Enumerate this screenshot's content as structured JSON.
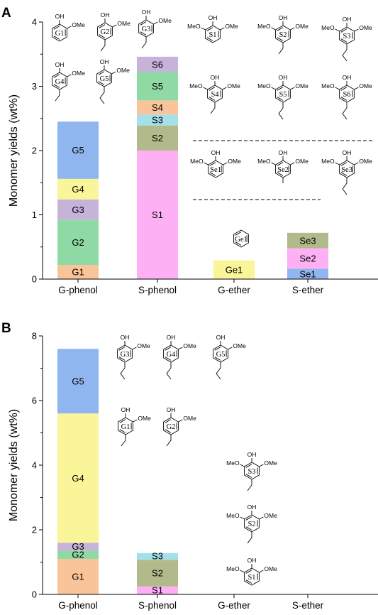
{
  "chart_data": [
    {
      "panel": "A",
      "type": "stacked_bar",
      "xlabel": "",
      "ylabel": "Monomer yields (wt%)",
      "ylim": [
        0,
        4
      ],
      "yticks": [
        "0",
        "1",
        "2",
        "3",
        "4"
      ],
      "categories": [
        "G-phenol",
        "S-phenol",
        "G-ether",
        "S-ether"
      ],
      "stacks": [
        {
          "category": "G-phenol",
          "segments": [
            {
              "label": "G1",
              "value": 0.22,
              "color": "#f9c49a"
            },
            {
              "label": "G2",
              "value": 0.7,
              "color": "#8ed9a4"
            },
            {
              "label": "G3",
              "value": 0.32,
              "color": "#c6b3d9"
            },
            {
              "label": "G4",
              "value": 0.32,
              "color": "#fbf59a"
            },
            {
              "label": "G5",
              "value": 0.89,
              "color": "#90b6ef"
            }
          ]
        },
        {
          "category": "S-phenol",
          "segments": [
            {
              "label": "S1",
              "value": 2.0,
              "color": "#fdb0f3"
            },
            {
              "label": "S2",
              "value": 0.39,
              "color": "#b2b98b"
            },
            {
              "label": "S3",
              "value": 0.17,
              "color": "#a3e0ea"
            },
            {
              "label": "S4",
              "value": 0.22,
              "color": "#f9c49a"
            },
            {
              "label": "S5",
              "value": 0.44,
              "color": "#8ed9a4"
            },
            {
              "label": "S6",
              "value": 0.24,
              "color": "#c6b3d9"
            }
          ]
        },
        {
          "category": "G-ether",
          "segments": [
            {
              "label": "Ge1",
              "value": 0.29,
              "color": "#fbf59a"
            }
          ]
        },
        {
          "category": "S-ether",
          "segments": [
            {
              "label": "Se1",
              "value": 0.16,
              "color": "#90b6ef"
            },
            {
              "label": "Se2",
              "value": 0.32,
              "color": "#fdb0f3"
            },
            {
              "label": "Se3",
              "value": 0.24,
              "color": "#b2b98b"
            }
          ]
        }
      ],
      "structure_labels": [
        "G1",
        "G2",
        "G3",
        "G4",
        "G5",
        "S1",
        "S2",
        "S3",
        "S4",
        "S5",
        "S6",
        "Se1",
        "Se2",
        "Se3",
        "Ge1"
      ],
      "substituent_labels": {
        "oh": "OH",
        "ome": "OMe",
        "meo": "MeO"
      }
    },
    {
      "panel": "B",
      "type": "stacked_bar",
      "xlabel": "",
      "ylabel": "Monomer yields (wt%)",
      "ylim": [
        0,
        8
      ],
      "yticks": [
        "0",
        "2",
        "4",
        "6",
        "8"
      ],
      "categories": [
        "G-phenol",
        "S-phenol",
        "G-ether",
        "S-ether"
      ],
      "stacks": [
        {
          "category": "G-phenol",
          "segments": [
            {
              "label": "G1",
              "value": 1.1,
              "color": "#f9c49a"
            },
            {
              "label": "G2",
              "value": 0.25,
              "color": "#8ed9a4"
            },
            {
              "label": "G3",
              "value": 0.25,
              "color": "#c6b3d9"
            },
            {
              "label": "G4",
              "value": 4.0,
              "color": "#fbf59a"
            },
            {
              "label": "G5",
              "value": 2.0,
              "color": "#90b6ef"
            }
          ]
        },
        {
          "category": "S-phenol",
          "segments": [
            {
              "label": "S1",
              "value": 0.25,
              "color": "#fdb0f3"
            },
            {
              "label": "S2",
              "value": 0.82,
              "color": "#b2b98b"
            },
            {
              "label": "S3",
              "value": 0.21,
              "color": "#a3e0ea"
            }
          ]
        },
        {
          "category": "G-ether",
          "segments": []
        },
        {
          "category": "S-ether",
          "segments": []
        }
      ],
      "structure_labels": [
        "G3",
        "G4",
        "G5",
        "G1",
        "G2",
        "S3",
        "S2",
        "S1"
      ],
      "substituent_labels": {
        "oh": "OH",
        "ome": "OMe",
        "meo": "MeO"
      }
    }
  ]
}
